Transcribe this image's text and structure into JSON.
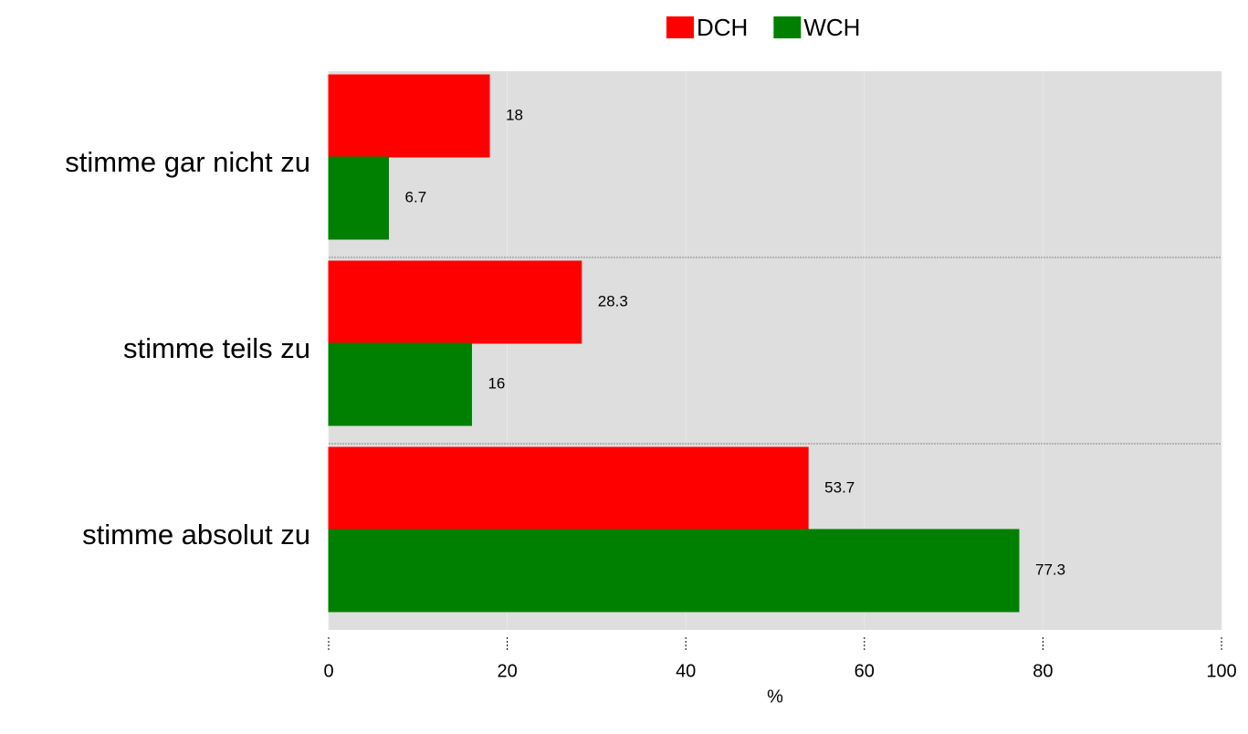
{
  "chart_data": {
    "type": "hbar",
    "categories": [
      "stimme gar nicht zu",
      "stimme teils zu",
      "stimme absolut zu"
    ],
    "series": [
      {
        "name": "DCH",
        "color": "#ff0000",
        "values": [
          18,
          28.3,
          53.7
        ]
      },
      {
        "name": "WCH",
        "color": "#008000",
        "values": [
          6.7,
          16,
          77.3
        ]
      }
    ],
    "xlim": [
      0,
      100
    ],
    "xticks": [
      0,
      20,
      40,
      60,
      80,
      100
    ],
    "xlabel": "%",
    "legend": "top",
    "grid": true
  }
}
